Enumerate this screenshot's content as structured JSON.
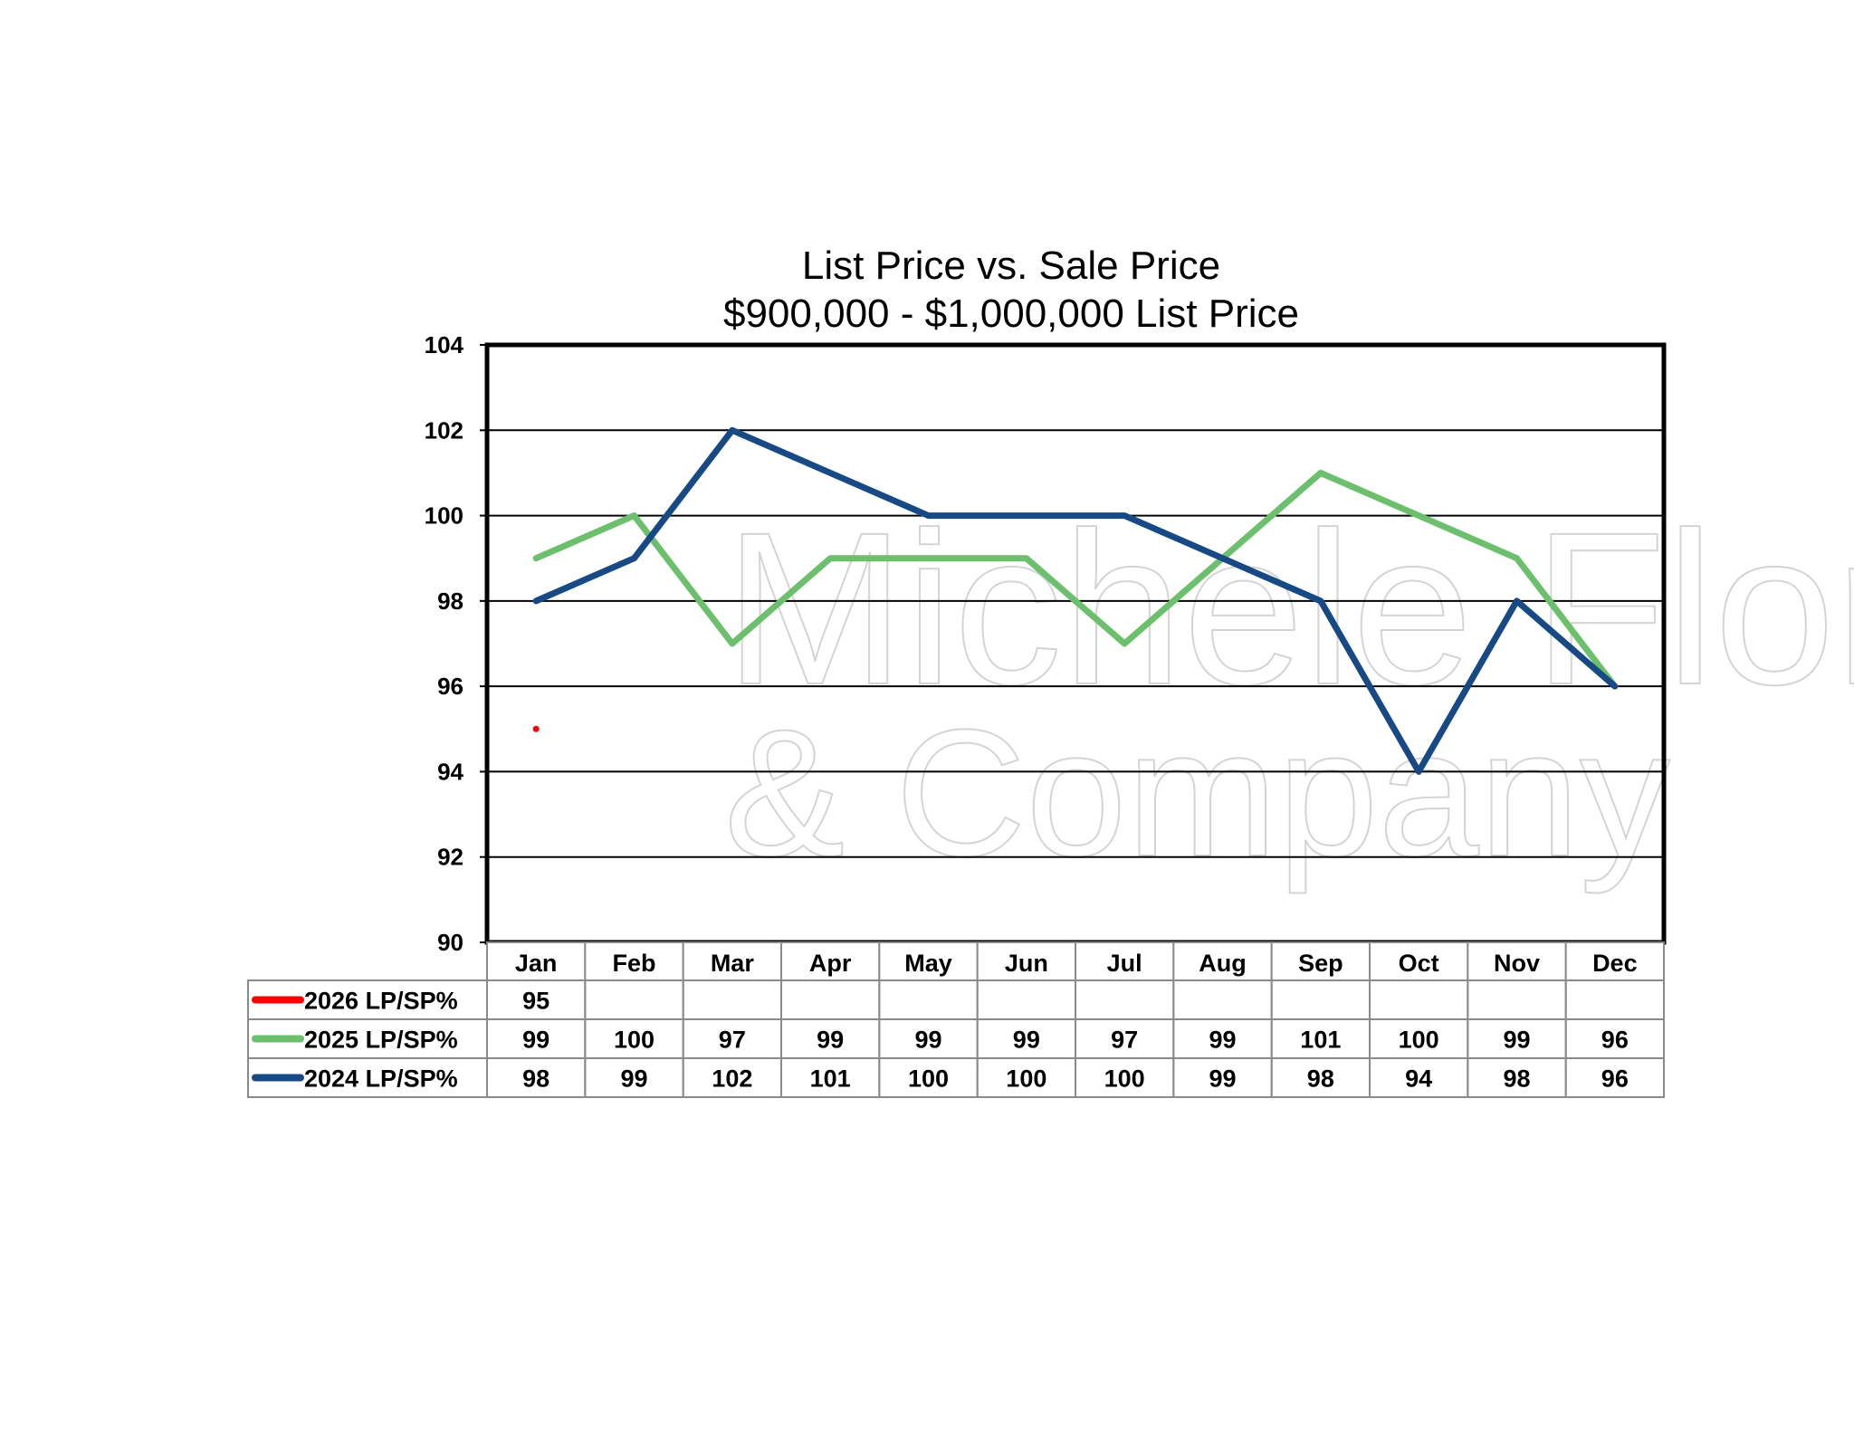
{
  "watermark": {
    "line1": "Michele Flory",
    "line2": "& Company"
  },
  "chart_data": {
    "type": "line",
    "title": "List Price vs. Sale Price",
    "subtitle": "$900,000 - $1,000,000 List Price",
    "xlabel": "",
    "ylabel": "",
    "categories": [
      "Jan",
      "Feb",
      "Mar",
      "Apr",
      "May",
      "Jun",
      "Jul",
      "Aug",
      "Sep",
      "Oct",
      "Nov",
      "Dec"
    ],
    "ylim": [
      90,
      104
    ],
    "yticks": [
      90,
      92,
      94,
      96,
      98,
      100,
      102,
      104
    ],
    "grid": true,
    "legend": "data-table-left",
    "series": [
      {
        "name": "2026 LP/SP%",
        "color": "#ff0000",
        "values": [
          95,
          null,
          null,
          null,
          null,
          null,
          null,
          null,
          null,
          null,
          null,
          null
        ]
      },
      {
        "name": "2025 LP/SP%",
        "color": "#6cbf6c",
        "values": [
          99,
          100,
          97,
          99,
          99,
          99,
          97,
          99,
          101,
          100,
          99,
          96
        ]
      },
      {
        "name": "2024 LP/SP%",
        "color": "#174a84",
        "values": [
          98,
          99,
          102,
          101,
          100,
          100,
          100,
          99,
          98,
          94,
          98,
          96
        ]
      }
    ]
  }
}
